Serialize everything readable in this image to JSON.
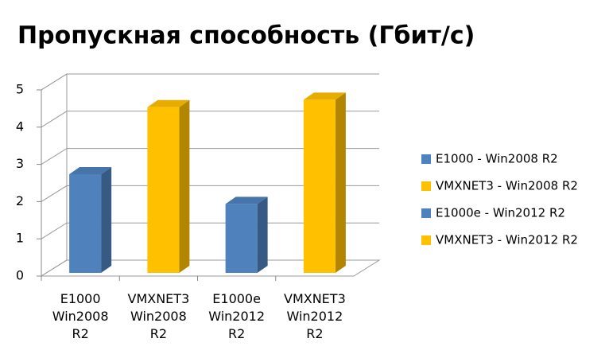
{
  "chart_data": {
    "type": "bar3d",
    "title": "Пропускная способность (Гбит/с)",
    "categories": [
      "E1000 Win2008 R2",
      "VMXNET3 Win2008 R2",
      "E1000e Win2012 R2",
      "VMXNET3 Win2012 R2"
    ],
    "series": [
      {
        "name": "E1000 - Win2008 R2",
        "color": "#4f81bd",
        "values": [
          2.65,
          null,
          null,
          null
        ]
      },
      {
        "name": "VMXNET3 - Win2008 R2",
        "color": "#ffc000",
        "values": [
          null,
          4.45,
          null,
          null
        ]
      },
      {
        "name": "E1000e - Win2012 R2",
        "color": "#4f81bd",
        "values": [
          null,
          null,
          1.85,
          null
        ]
      },
      {
        "name": "VMXNET3 - Win2012 R2",
        "color": "#ffc000",
        "values": [
          null,
          null,
          null,
          4.65
        ]
      }
    ],
    "ylim": [
      0,
      5
    ],
    "yticks": [
      0,
      1,
      2,
      3,
      4,
      5
    ],
    "grid": true,
    "legend": "right"
  }
}
